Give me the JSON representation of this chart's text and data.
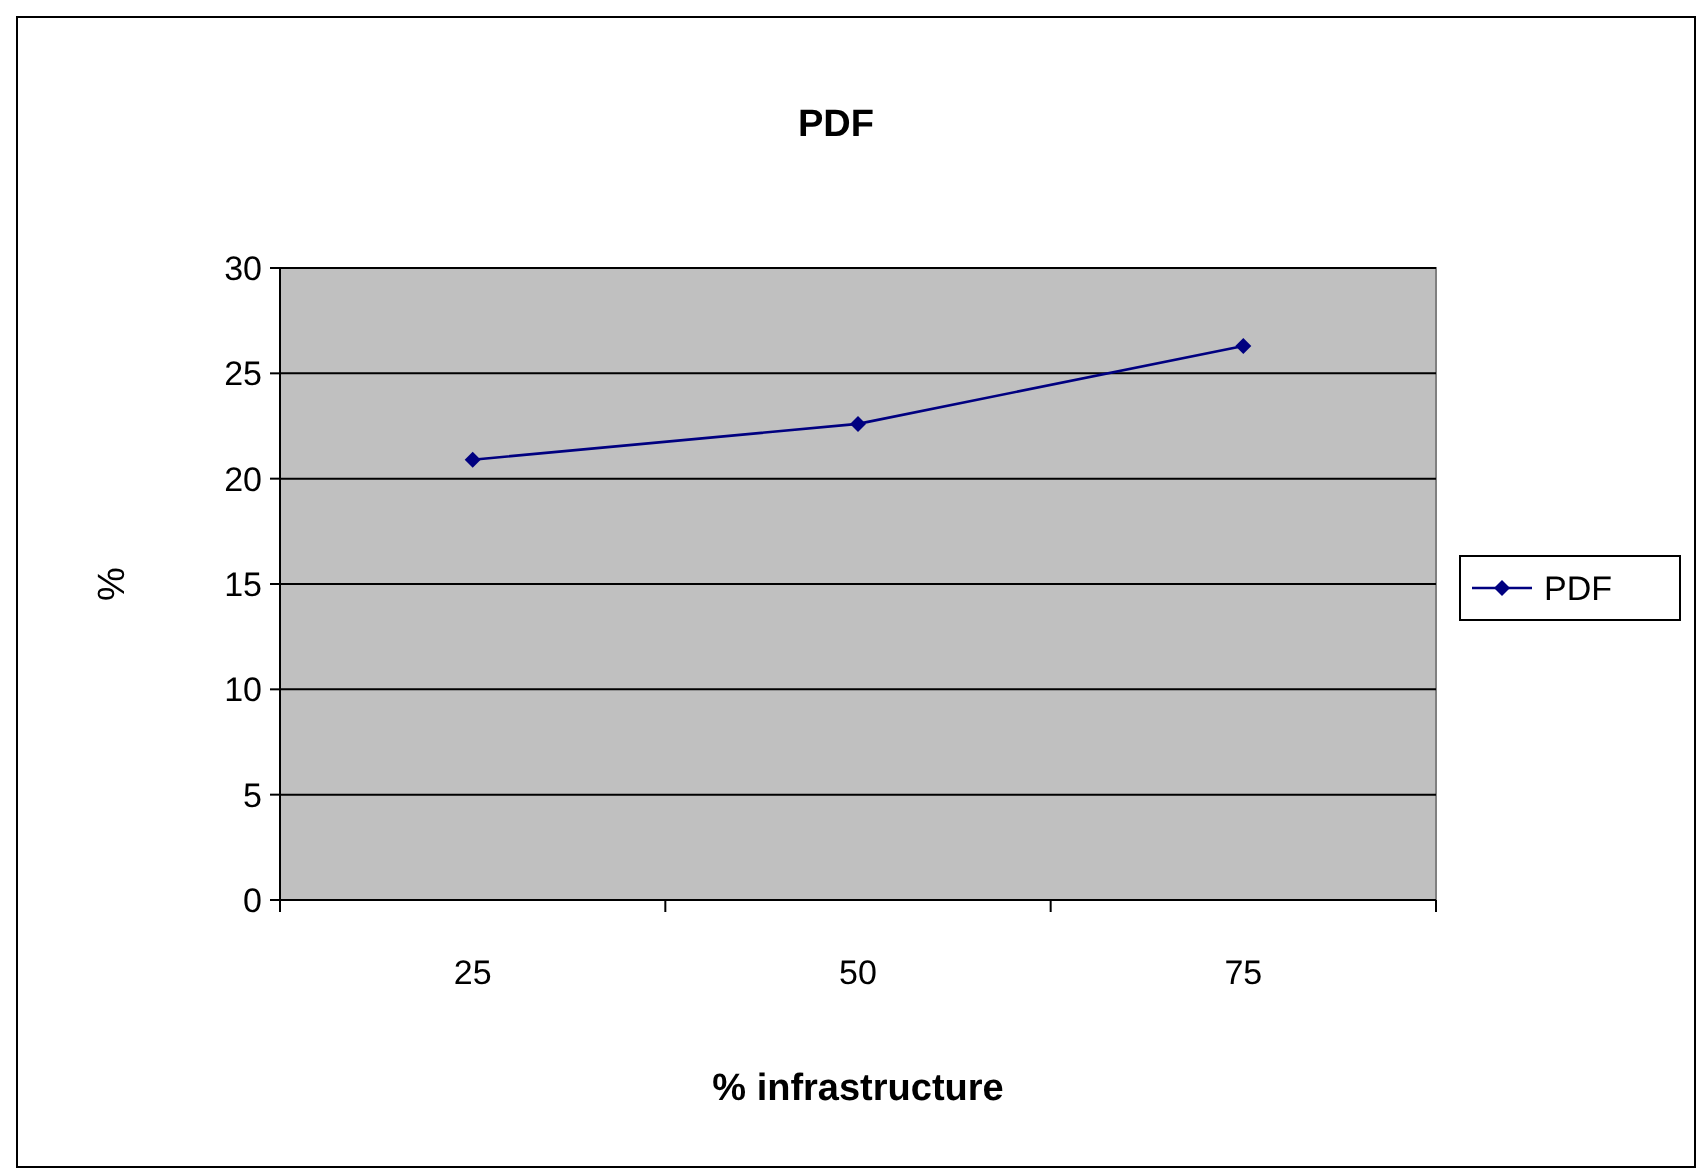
{
  "chart_data": {
    "type": "line",
    "title": "PDF",
    "xlabel": "% infrastructure",
    "ylabel": "%",
    "categories": [
      "25",
      "50",
      "75"
    ],
    "series": [
      {
        "name": "PDF",
        "color": "#000080",
        "values": [
          20.9,
          22.6,
          26.3
        ]
      }
    ],
    "ylim": [
      0,
      30
    ],
    "yticks": [
      0,
      5,
      10,
      15,
      20,
      25,
      30
    ],
    "grid": "y",
    "legend": "right",
    "marker": "diamond",
    "line_style": "solid"
  }
}
